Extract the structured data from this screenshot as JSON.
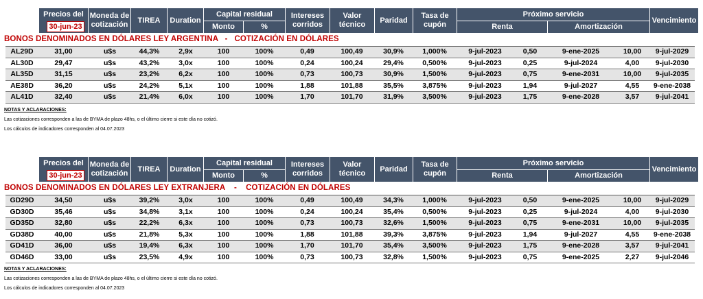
{
  "header": {
    "precios_del": "Precios del",
    "date": "30-jun-23",
    "moneda": [
      "Moneda de",
      "cotización"
    ],
    "tirea": "TIREA",
    "duration": "Duration",
    "capital_residual": "Capital residual",
    "monto": "Monto",
    "pct": "%",
    "intereses": [
      "Intereses",
      "corridos"
    ],
    "valor": [
      "Valor",
      "técnico"
    ],
    "paridad": "Paridad",
    "tasa": [
      "Tasa de",
      "cupón"
    ],
    "proximo_servicio": "Próximo servicio",
    "renta": "Renta",
    "amortizacion": "Amortización",
    "vencimiento": "Vencimiento"
  },
  "section1": {
    "title": "BONOS DENOMINADOS EN DÓLARES LEY ARGENTINA   -   COTIZACIÓN EN DÓLARES",
    "rows": [
      [
        "AL29D",
        "31,00",
        "u$s",
        "44,3%",
        "2,9x",
        "100",
        "100%",
        "0,49",
        "100,49",
        "30,9%",
        "1,000%",
        "9-jul-2023",
        "0,50",
        "9-ene-2025",
        "10,00",
        "9-jul-2029"
      ],
      [
        "AL30D",
        "29,47",
        "u$s",
        "43,2%",
        "3,0x",
        "100",
        "100%",
        "0,24",
        "100,24",
        "29,4%",
        "0,500%",
        "9-jul-2023",
        "0,25",
        "9-jul-2024",
        "4,00",
        "9-jul-2030"
      ],
      [
        "AL35D",
        "31,15",
        "u$s",
        "23,2%",
        "6,2x",
        "100",
        "100%",
        "0,73",
        "100,73",
        "30,9%",
        "1,500%",
        "9-jul-2023",
        "0,75",
        "9-ene-2031",
        "10,00",
        "9-jul-2035"
      ],
      [
        "AE38D",
        "36,20",
        "u$s",
        "24,2%",
        "5,1x",
        "100",
        "100%",
        "1,88",
        "101,88",
        "35,5%",
        "3,875%",
        "9-jul-2023",
        "1,94",
        "9-jul-2027",
        "4,55",
        "9-ene-2038"
      ],
      [
        "AL41D",
        "32,40",
        "u$s",
        "21,4%",
        "6,0x",
        "100",
        "100%",
        "1,70",
        "101,70",
        "31,9%",
        "3,500%",
        "9-jul-2023",
        "1,75",
        "9-ene-2028",
        "3,57",
        "9-jul-2041"
      ]
    ],
    "notes_title": "NOTAS Y ACLARACIONES:",
    "note1": "Las cotizaciones corresponden a las de BYMA de plazo 48hs, o el último cierre si este día no cotizó.",
    "note2": "Los cálculos de indicadores corresponden al 04.07.2023"
  },
  "section2": {
    "title": "BONOS DENOMINADOS EN DÓLARES LEY EXTRANJERA    -    COTIZACIÓN EN DÓLARES",
    "rows": [
      [
        "GD29D",
        "34,50",
        "u$s",
        "39,2%",
        "3,0x",
        "100",
        "100%",
        "0,49",
        "100,49",
        "34,3%",
        "1,000%",
        "9-jul-2023",
        "0,50",
        "9-ene-2025",
        "10,00",
        "9-jul-2029"
      ],
      [
        "GD30D",
        "35,46",
        "u$s",
        "34,8%",
        "3,1x",
        "100",
        "100%",
        "0,24",
        "100,24",
        "35,4%",
        "0,500%",
        "9-jul-2023",
        "0,25",
        "9-jul-2024",
        "4,00",
        "9-jul-2030"
      ],
      [
        "GD35D",
        "32,80",
        "u$s",
        "22,2%",
        "6,3x",
        "100",
        "100%",
        "0,73",
        "100,73",
        "32,6%",
        "1,500%",
        "9-jul-2023",
        "0,75",
        "9-ene-2031",
        "10,00",
        "9-jul-2035"
      ],
      [
        "GD38D",
        "40,00",
        "u$s",
        "21,8%",
        "5,3x",
        "100",
        "100%",
        "1,88",
        "101,88",
        "39,3%",
        "3,875%",
        "9-jul-2023",
        "1,94",
        "9-jul-2027",
        "4,55",
        "9-ene-2038"
      ],
      [
        "GD41D",
        "36,00",
        "u$s",
        "19,4%",
        "6,3x",
        "100",
        "100%",
        "1,70",
        "101,70",
        "35,4%",
        "3,500%",
        "9-jul-2023",
        "1,75",
        "9-ene-2028",
        "3,57",
        "9-jul-2041"
      ],
      [
        "GD46D",
        "33,00",
        "u$s",
        "23,5%",
        "4,9x",
        "100",
        "100%",
        "0,73",
        "100,73",
        "32,8%",
        "1,500%",
        "9-jul-2023",
        "0,75",
        "9-ene-2025",
        "2,27",
        "9-jul-2046"
      ]
    ],
    "notes_title": "NOTAS Y ACLARACIONES:",
    "note1": "Las cotizaciones corresponden a las de BYMA de plazo 48hs, o el último cierre si este día no cotizó.",
    "note2": "Los cálculos de indicadores corresponden al 04.07.2023"
  }
}
